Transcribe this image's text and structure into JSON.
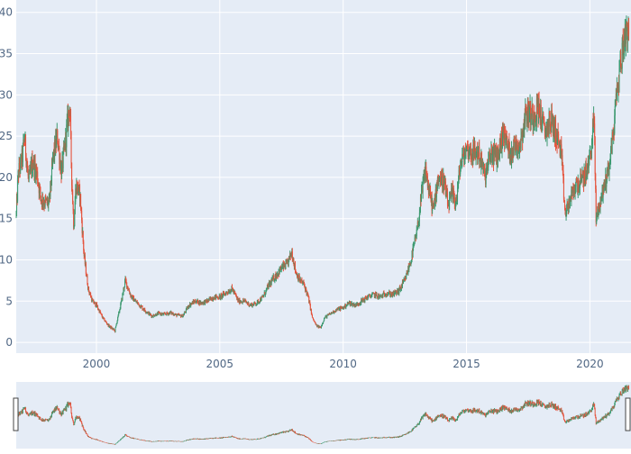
{
  "chart_data": {
    "type": "candlestick",
    "title": "",
    "xlabel": "",
    "ylabel": "",
    "x_range": [
      "1996-10-01",
      "2021-09-01"
    ],
    "ylim": [
      -1.3,
      41.5
    ],
    "x_ticks": [
      "2000",
      "2005",
      "2010",
      "2015",
      "2020"
    ],
    "y_ticks": [
      "0",
      "5",
      "10",
      "15",
      "20",
      "25",
      "30",
      "35",
      "40"
    ],
    "grid": true,
    "legend": "none",
    "rangeslider": true,
    "colors": {
      "increasing": "#3D9970",
      "decreasing": "#E5533C",
      "plot_bg": "#E5ECF6",
      "grid": "#FFFFFF",
      "tick_text": "#506784"
    },
    "series": [
      {
        "x": [
          "1996-10",
          "1996-11",
          "1997-01",
          "1997-02",
          "1997-04",
          "1997-06",
          "1997-08",
          "1997-10",
          "1997-12",
          "1998-02",
          "1998-04",
          "1998-06",
          "1998-08",
          "1998-10",
          "1998-12",
          "1999-01",
          "1999-02",
          "1999-03",
          "1999-05",
          "1999-07",
          "1999-09",
          "1999-11",
          "2000-01",
          "2000-04",
          "2000-07",
          "2000-10",
          "2001-01",
          "2001-03",
          "2001-06",
          "2001-08",
          "2001-10",
          "2002-01",
          "2002-04",
          "2002-07",
          "2002-10",
          "2003-01",
          "2003-04",
          "2003-07",
          "2003-10",
          "2004-01",
          "2004-04",
          "2004-07",
          "2004-10",
          "2005-01",
          "2005-04",
          "2005-07",
          "2005-10",
          "2006-01",
          "2006-04",
          "2006-07",
          "2006-10",
          "2007-01",
          "2007-04",
          "2007-07",
          "2007-10",
          "2007-12",
          "2008-02",
          "2008-04",
          "2008-06",
          "2008-08",
          "2008-10",
          "2008-12",
          "2009-02",
          "2009-04",
          "2009-07",
          "2009-10",
          "2010-01",
          "2010-04",
          "2010-07",
          "2010-10",
          "2011-01",
          "2011-04",
          "2011-07",
          "2011-10",
          "2012-01",
          "2012-04",
          "2012-07",
          "2012-10",
          "2013-01",
          "2013-03",
          "2013-05",
          "2013-07",
          "2013-09",
          "2013-11",
          "2014-02",
          "2014-04",
          "2014-06",
          "2014-08",
          "2014-10",
          "2015-01",
          "2015-04",
          "2015-07",
          "2015-10",
          "2016-01",
          "2016-04",
          "2016-07",
          "2016-10",
          "2017-01",
          "2017-03",
          "2017-06",
          "2017-09",
          "2017-12",
          "2018-03",
          "2018-06",
          "2018-09",
          "2018-11",
          "2019-01",
          "2019-03",
          "2019-06",
          "2019-09",
          "2019-12",
          "2020-02",
          "2020-03",
          "2020-04",
          "2020-06",
          "2020-08",
          "2020-10",
          "2020-12",
          "2021-02",
          "2021-04",
          "2021-06",
          "2021-08"
        ],
        "values": [
          15.5,
          20.5,
          22.5,
          25.0,
          19.5,
          22.0,
          20.5,
          17.5,
          17.0,
          16.8,
          22.5,
          25.0,
          20.5,
          24.5,
          29.0,
          20.0,
          14.0,
          19.0,
          18.0,
          10.5,
          6.5,
          5.0,
          4.5,
          3.0,
          2.0,
          1.4,
          4.8,
          7.5,
          5.5,
          5.0,
          4.5,
          3.8,
          3.2,
          3.5,
          3.4,
          3.6,
          3.3,
          3.2,
          4.5,
          5.0,
          4.8,
          5.0,
          5.5,
          5.5,
          6.0,
          6.5,
          5.0,
          5.0,
          4.5,
          4.8,
          5.5,
          7.0,
          8.0,
          9.0,
          9.5,
          11.0,
          8.5,
          7.5,
          7.0,
          5.5,
          3.0,
          2.0,
          1.8,
          3.0,
          3.5,
          4.0,
          4.2,
          4.8,
          4.5,
          5.0,
          5.5,
          5.8,
          5.5,
          6.0,
          5.8,
          6.2,
          7.5,
          10.0,
          13.5,
          17.5,
          21.0,
          18.0,
          16.0,
          20.0,
          19.5,
          16.5,
          18.0,
          17.0,
          21.5,
          23.5,
          23.0,
          23.0,
          20.0,
          23.0,
          22.5,
          25.5,
          23.0,
          24.0,
          24.0,
          28.0,
          27.5,
          28.5,
          25.5,
          27.0,
          25.0,
          23.0,
          15.5,
          17.0,
          19.0,
          19.5,
          21.0,
          24.5,
          27.5,
          15.0,
          17.0,
          19.0,
          21.0,
          24.5,
          30.0,
          34.0,
          37.5,
          38.5
        ]
      }
    ]
  }
}
